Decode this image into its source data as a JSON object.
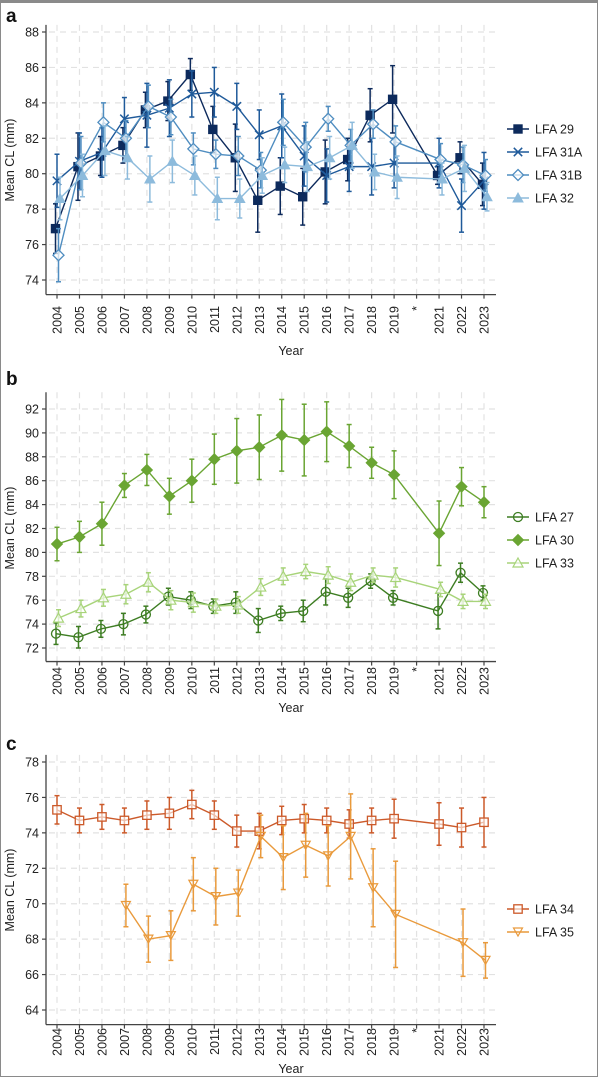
{
  "chart_data": [
    {
      "type": "line",
      "panel": "a",
      "xlabel": "Year",
      "ylabel": "Mean CL (mm)",
      "categories": [
        "2004",
        "2005",
        "2006",
        "2007",
        "2008",
        "2009",
        "2010",
        "2011",
        "2012",
        "2013",
        "2014",
        "2015",
        "2016",
        "2017",
        "2018",
        "2019",
        "*",
        "2021",
        "2022",
        "2023"
      ],
      "yticks": [
        74,
        76,
        78,
        80,
        82,
        84,
        86,
        88
      ],
      "ylim": [
        73.4,
        88.4
      ],
      "grid": true,
      "legend_position": "right",
      "error_bars": true,
      "series": [
        {
          "name": "LFA 29",
          "marker": "square-filled",
          "color": "#0d2a5c",
          "values": [
            76.9,
            80.4,
            81.0,
            81.6,
            83.6,
            84.1,
            85.6,
            82.5,
            80.9,
            78.5,
            79.3,
            78.7,
            80.1,
            80.8,
            83.3,
            84.2,
            null,
            79.9,
            80.9,
            79.4
          ],
          "err": [
            1.4,
            1.9,
            1.1,
            1.0,
            1.0,
            1.1,
            0.9,
            1.3,
            1.9,
            1.8,
            1.6,
            1.6,
            1.8,
            1.2,
            1.5,
            1.9,
            null,
            0.5,
            0.9,
            1.2
          ]
        },
        {
          "name": "LFA 31A",
          "marker": "x",
          "color": "#1f5a9a",
          "values": [
            79.6,
            80.7,
            81.2,
            83.1,
            83.3,
            83.7,
            84.5,
            84.6,
            83.8,
            82.2,
            82.7,
            81.0,
            79.9,
            80.4,
            80.4,
            80.6,
            null,
            80.6,
            78.2,
            79.6
          ],
          "err": [
            1.5,
            1.6,
            1.4,
            1.2,
            1.8,
            1.6,
            1.3,
            1.4,
            1.3,
            1.4,
            1.8,
            1.7,
            1.5,
            1.4,
            1.6,
            1.4,
            null,
            1.4,
            1.5,
            1.6
          ]
        },
        {
          "name": "LFA 31B",
          "marker": "diamond-open",
          "color": "#4f8dc0",
          "values": [
            75.4,
            80.6,
            82.9,
            82.0,
            83.8,
            83.2,
            81.4,
            81.1,
            81.0,
            80.2,
            82.9,
            81.5,
            83.1,
            81.6,
            82.8,
            81.8,
            null,
            80.8,
            80.5,
            79.9
          ],
          "err": [
            1.5,
            1.5,
            1.1,
            1.0,
            1.2,
            1.0,
            0.9,
            0.8,
            1.1,
            1.0,
            1.3,
            1.4,
            0.7,
            0.9,
            0.8,
            0.9,
            null,
            0.9,
            1.0,
            0.9
          ]
        },
        {
          "name": "LFA 32",
          "marker": "triangle-filled",
          "color": "#8dbbdc",
          "values": [
            78.6,
            79.9,
            81.3,
            80.9,
            79.7,
            80.7,
            79.9,
            78.6,
            78.6,
            79.9,
            80.5,
            80.4,
            80.9,
            81.6,
            80.1,
            79.8,
            null,
            79.7,
            80.3,
            78.7
          ],
          "err": [
            1.2,
            1.2,
            1.4,
            1.2,
            1.3,
            1.2,
            1.1,
            1.2,
            1.1,
            1.0,
            1.0,
            1.4,
            1.2,
            1.3,
            1.0,
            1.2,
            null,
            0.9,
            1.3,
            0.8
          ]
        }
      ]
    },
    {
      "type": "line",
      "panel": "b",
      "xlabel": "Year",
      "ylabel": "Mean CL (mm)",
      "categories": [
        "2004",
        "2005",
        "2006",
        "2007",
        "2008",
        "2009",
        "2010",
        "2011",
        "2012",
        "2013",
        "2014",
        "2015",
        "2016",
        "2017",
        "2018",
        "2019",
        "*",
        "2021",
        "2022",
        "2023"
      ],
      "yticks": [
        72,
        74,
        76,
        78,
        80,
        82,
        84,
        86,
        88,
        90,
        92
      ],
      "ylim": [
        71.2,
        93.4
      ],
      "grid": true,
      "legend_position": "right",
      "error_bars": true,
      "series": [
        {
          "name": "LFA 27",
          "marker": "circle-open",
          "color": "#3d7d22",
          "values": [
            73.2,
            72.9,
            73.6,
            74.0,
            74.8,
            76.3,
            76.0,
            75.5,
            75.8,
            74.3,
            74.9,
            75.1,
            76.7,
            76.2,
            77.6,
            76.2,
            null,
            75.1,
            78.3,
            76.6
          ],
          "err": [
            0.9,
            0.9,
            0.7,
            0.9,
            0.7,
            0.7,
            0.7,
            0.6,
            0.9,
            1.0,
            0.6,
            0.9,
            1.1,
            0.8,
            0.6,
            0.6,
            null,
            1.5,
            0.8,
            0.6
          ]
        },
        {
          "name": "LFA 30",
          "marker": "diamond-filled",
          "color": "#6aa533",
          "values": [
            80.7,
            81.3,
            82.4,
            85.6,
            86.9,
            84.7,
            86.0,
            87.8,
            88.5,
            88.8,
            89.8,
            89.4,
            90.1,
            88.9,
            87.5,
            86.5,
            null,
            81.6,
            85.5,
            84.2
          ],
          "err": [
            1.4,
            1.3,
            1.8,
            1.0,
            1.3,
            1.5,
            1.8,
            2.1,
            2.7,
            2.7,
            3.0,
            3.0,
            2.5,
            1.8,
            1.3,
            2.0,
            null,
            2.7,
            1.6,
            1.3
          ]
        },
        {
          "name": "LFA 33",
          "marker": "triangle-open",
          "color": "#a8d47a",
          "values": [
            74.5,
            75.3,
            76.2,
            76.5,
            77.5,
            76.0,
            75.8,
            75.5,
            75.6,
            77.1,
            78.0,
            78.4,
            78.1,
            77.5,
            78.1,
            77.9,
            null,
            76.9,
            75.9,
            75.9
          ],
          "err": [
            0.7,
            0.7,
            0.7,
            0.8,
            0.8,
            0.8,
            0.8,
            0.6,
            0.7,
            0.7,
            0.7,
            0.6,
            0.7,
            0.7,
            0.6,
            0.8,
            null,
            0.6,
            0.6,
            0.6
          ]
        }
      ]
    },
    {
      "type": "line",
      "panel": "c",
      "xlabel": "Year",
      "ylabel": "Mean CL (mm)",
      "categories": [
        "2004",
        "2005",
        "2006",
        "2007",
        "2008",
        "2009",
        "2010",
        "2011",
        "2012",
        "2013",
        "2014",
        "2015",
        "2016",
        "2017",
        "2018",
        "2019",
        "*",
        "2021",
        "2022",
        "2023"
      ],
      "yticks": [
        64,
        66,
        68,
        70,
        72,
        74,
        76,
        78
      ],
      "ylim": [
        63.4,
        78.4
      ],
      "grid": true,
      "legend_position": "right",
      "error_bars": true,
      "series": [
        {
          "name": "LFA 34",
          "marker": "square-open",
          "color": "#cc5a2a",
          "values": [
            75.3,
            74.7,
            74.9,
            74.7,
            75.0,
            75.1,
            75.6,
            75.0,
            74.1,
            74.1,
            74.7,
            74.8,
            74.7,
            74.5,
            74.7,
            74.8,
            null,
            74.5,
            74.3,
            74.6
          ],
          "err": [
            0.8,
            0.7,
            0.7,
            0.7,
            0.8,
            0.9,
            0.8,
            0.8,
            0.9,
            1.0,
            0.8,
            0.8,
            0.7,
            0.8,
            0.7,
            1.1,
            null,
            1.2,
            1.1,
            1.4
          ]
        },
        {
          "name": "LFA 35",
          "marker": "triangle-down-open",
          "color": "#e99a3c",
          "values": [
            null,
            null,
            null,
            69.9,
            68.0,
            68.2,
            71.1,
            70.4,
            70.6,
            73.8,
            72.6,
            73.3,
            72.7,
            73.8,
            70.9,
            69.4,
            null,
            null,
            67.8,
            66.8
          ],
          "err": [
            null,
            null,
            null,
            1.2,
            1.3,
            1.4,
            1.5,
            1.6,
            1.3,
            1.2,
            1.8,
            1.8,
            1.7,
            2.4,
            2.2,
            3.0,
            null,
            null,
            1.9,
            1.0
          ]
        }
      ]
    }
  ]
}
